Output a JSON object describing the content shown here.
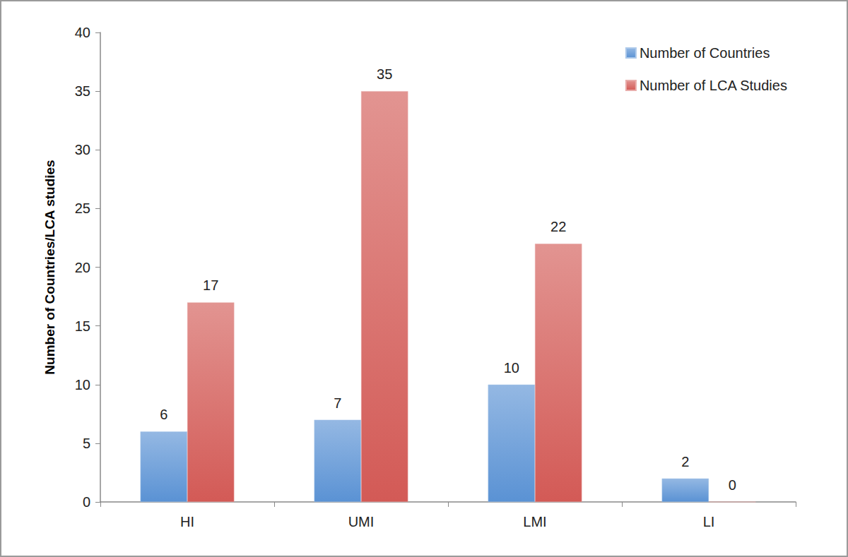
{
  "chart_data": {
    "type": "bar",
    "categories": [
      "HI",
      "UMI",
      "LMI",
      "LI"
    ],
    "series": [
      {
        "name": "Number of Countries",
        "color": "#5a92d4",
        "values": [
          6,
          7,
          10,
          2
        ]
      },
      {
        "name": "Number of LCA Studies",
        "color": "#d35a56",
        "values": [
          17,
          35,
          22,
          0
        ]
      }
    ],
    "ylabel": "Number of Countries/LCA studies",
    "ylim": [
      0,
      40
    ],
    "yticks": [
      0,
      5,
      10,
      15,
      20,
      25,
      30,
      35,
      40
    ],
    "grid": false,
    "legend": "upper right",
    "data_labels": true
  }
}
